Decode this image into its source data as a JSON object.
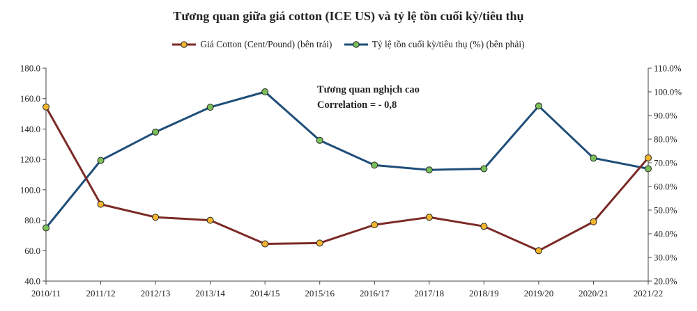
{
  "title": "Tương quan giữa giá cotton (ICE US) và tỷ lệ tồn cuối kỳ/tiêu thụ",
  "colors": {
    "cotton_line": "#7b2a26",
    "cotton_marker": "#f2b530",
    "ratio_line": "#1f4e79",
    "ratio_marker": "#7bbf5a",
    "axis": "#444444",
    "text": "#222222"
  },
  "chart_data": {
    "type": "line",
    "title": "Tương quan giữa giá cotton (ICE US) và tỷ lệ tồn cuối kỳ/tiêu thụ",
    "categories": [
      "2010/11",
      "2011/12",
      "2012/13",
      "2013/14",
      "2014/15",
      "2015/16",
      "2016/17",
      "2017/18",
      "2018/19",
      "2019/20",
      "2020/21",
      "2021/22"
    ],
    "series": [
      {
        "name": "Giá Cotton (Cent/Pound) (bên trái)",
        "axis": "left",
        "values": [
          154.5,
          90.5,
          82.0,
          80.0,
          64.5,
          65.0,
          77.0,
          82.0,
          76.0,
          60.0,
          79.0,
          121.0
        ]
      },
      {
        "name": "Tỷ lệ tồn cuối kỳ/tiêu thụ (%) (bên phải)",
        "axis": "right",
        "values": [
          42.5,
          71.0,
          83.0,
          93.5,
          100.0,
          79.5,
          69.0,
          67.0,
          67.5,
          94.0,
          72.0,
          67.5
        ]
      }
    ],
    "y_left": {
      "min": 40,
      "max": 180,
      "step": 20,
      "tick_labels": [
        "40.0",
        "60.0",
        "80.0",
        "100.0",
        "120.0",
        "140.0",
        "160.0",
        "180.0"
      ]
    },
    "y_right": {
      "min": 20,
      "max": 110,
      "step": 10,
      "tick_labels": [
        "20.0%",
        "30.0%",
        "40.0%",
        "50.0%",
        "60.0%",
        "70.0%",
        "80.0%",
        "90.0%",
        "100.0%",
        "110.0%"
      ]
    },
    "annotations": [
      "Tương quan nghịch cao",
      "Correlation = - 0,8"
    ],
    "legend_position": "top-center",
    "grid": false
  }
}
